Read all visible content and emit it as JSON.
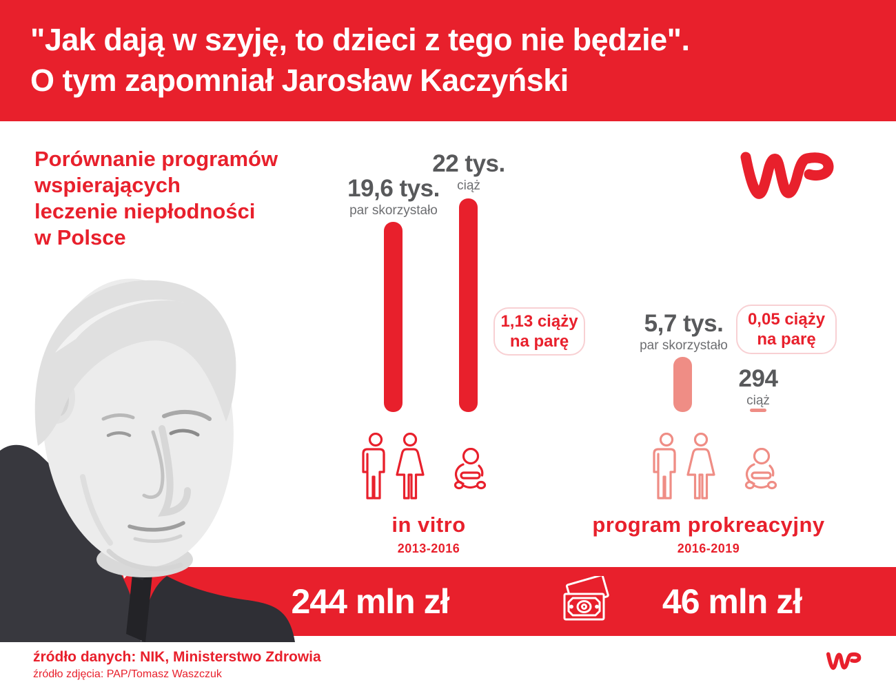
{
  "header": {
    "line1": "\"Jak dają w szyję, to dzieci z tego nie będzie\".",
    "line2": "O tym zapomniał Jarosław Kaczyński"
  },
  "intro": {
    "line1": "Porównanie programów",
    "line2": "wspierających",
    "line3": "leczenie niepłodności",
    "line4": "w Polsce"
  },
  "brand": {
    "name": "WP"
  },
  "invitro": {
    "couples_value": "19,6 tys.",
    "couples_label": "par skorzystało",
    "pregnancies_value": "22 tys.",
    "pregnancies_label": "ciąż",
    "ratio_line1": "1,13 ciąży",
    "ratio_line2": "na parę",
    "name": "in vitro",
    "period": "2013-2016"
  },
  "program": {
    "couples_value": "5,7 tys.",
    "couples_label": "par skorzystało",
    "pregnancies_value": "294",
    "pregnancies_label": "ciąż",
    "ratio_line1": "0,05 ciąży",
    "ratio_line2": "na parę",
    "name": "program prokreacyjny",
    "period": "2016-2019"
  },
  "funding": {
    "invitro": "244 mln zł",
    "program": "46 mln zł"
  },
  "footer": {
    "source_data": "źródło danych: NIK, Ministerstwo Zdrowia",
    "source_photo": "źródło zdjęcia: PAP/Tomasz Waszczuk"
  },
  "icons": {
    "man": "man-icon",
    "woman": "woman-icon",
    "baby": "baby-icon",
    "money": "banknotes-icon",
    "logo": "wp-logo"
  },
  "colors": {
    "red": "#e8202c",
    "salmon": "#ef8d85",
    "gray_value": "#58595b",
    "gray_label": "#6d6e71",
    "box_border": "#f8d0d3",
    "white": "#ffffff"
  },
  "chart_data": {
    "type": "bar",
    "title": "Porównanie programów wspierających leczenie niepłodności w Polsce",
    "subtitle_quote": "\"Jak dają w szyję, to dzieci z tego nie będzie\". O tym zapomniał Jarosław Kaczyński",
    "categories": [
      "par skorzystało",
      "ciąż"
    ],
    "groups": [
      {
        "name": "in vitro",
        "period": "2013-2016",
        "couples": 19600,
        "pregnancies": 22000,
        "pregnancies_per_couple": 1.13,
        "funding_mln_zl": 244,
        "bar_color": "#e8202c"
      },
      {
        "name": "program prokreacyjny",
        "period": "2016-2019",
        "couples": 5700,
        "pregnancies": 294,
        "pregnancies_per_couple": 0.05,
        "funding_mln_zl": 46,
        "bar_color": "#ef8d85"
      }
    ],
    "ylabel": "",
    "xlabel": "",
    "legend_position": "none",
    "grid": false,
    "source": "NIK, Ministerstwo Zdrowia"
  }
}
